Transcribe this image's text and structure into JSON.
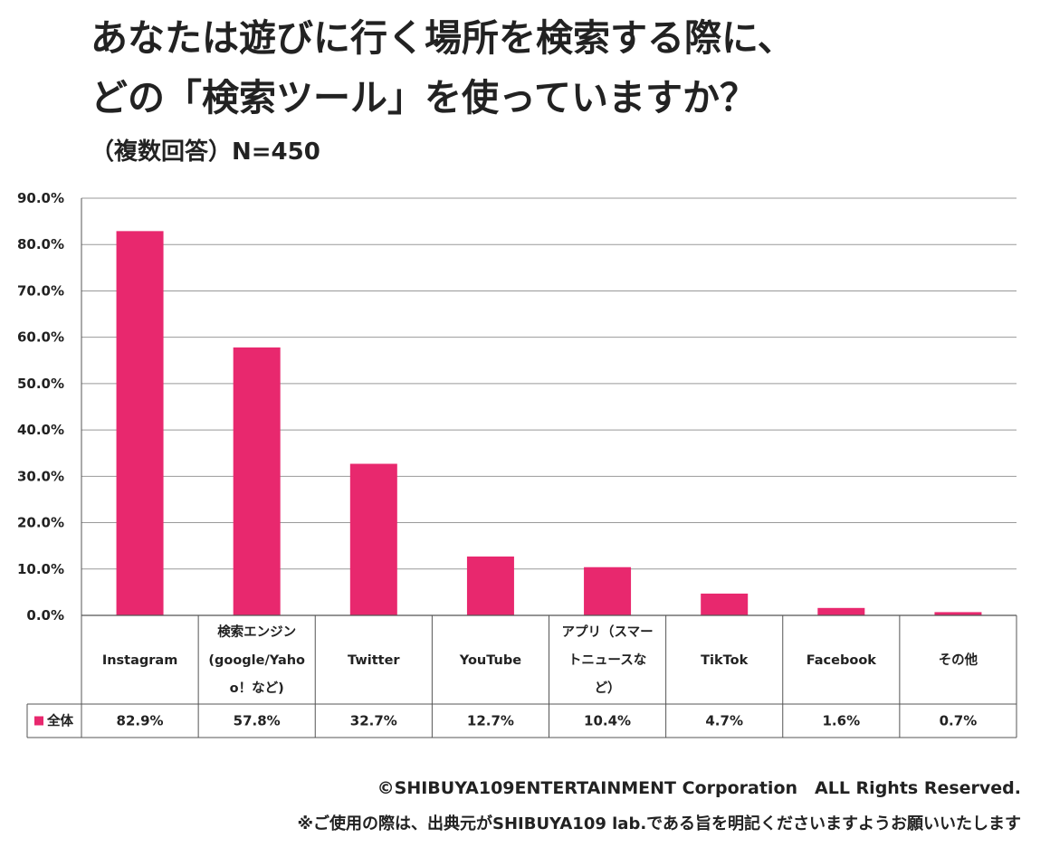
{
  "title_line1": "あなたは遊びに行く場所を検索する際に、",
  "title_line2": "どの「検索ツール」を使っていますか？",
  "subtitle": "（複数回答）N=450",
  "copyright": "©SHIBUYA109ENTERTAINMENT Corporation　ALL Rights Reserved.",
  "usage_note": "※ご使用の際は、出典元がSHIBUYA109 lab.である旨を明記くださいますようお願いいたします",
  "colors": {
    "bar": "#e8286e",
    "grid": "#999999",
    "border": "#555555"
  },
  "chart_data": {
    "type": "bar",
    "ylim": [
      0,
      90
    ],
    "ytick_labels": [
      "0.0%",
      "10.0%",
      "20.0%",
      "30.0%",
      "40.0%",
      "50.0%",
      "60.0%",
      "70.0%",
      "80.0%",
      "90.0%"
    ],
    "grid": true,
    "categories": [
      [
        "Instagram"
      ],
      [
        "検索エンジン",
        "(google/Yaho",
        "o！など)"
      ],
      [
        "Twitter"
      ],
      [
        "YouTube"
      ],
      [
        "アプリ（スマー",
        "トニュースな",
        "ど）"
      ],
      [
        "TikTok"
      ],
      [
        "Facebook"
      ],
      [
        "その他"
      ]
    ],
    "series": [
      {
        "name": "全体",
        "values": [
          82.9,
          57.8,
          32.7,
          12.7,
          10.4,
          4.7,
          1.6,
          0.7
        ],
        "value_labels": [
          "82.9%",
          "57.8%",
          "32.7%",
          "12.7%",
          "10.4%",
          "4.7%",
          "1.6%",
          "0.7%"
        ]
      }
    ]
  }
}
